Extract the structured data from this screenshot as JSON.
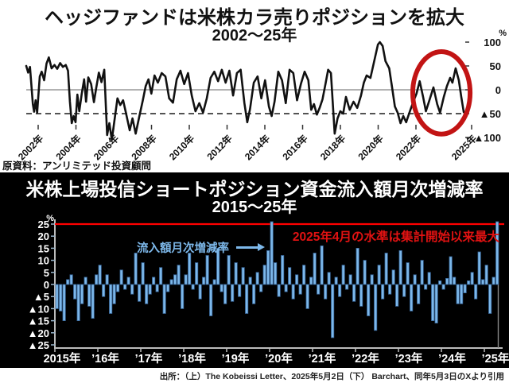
{
  "top": {
    "title": "ヘッジファンドは米株カラ売りポジションを拡大",
    "subtitle": "2002〜25年",
    "source": "原資料：アンリミテッド投資顧問",
    "unit": "%"
  },
  "bottom": {
    "title": "米株上場投信ショートポジション資金流入額月次増減率",
    "subtitle": "2015〜25年",
    "unit": "%",
    "series_label": "流入額月次増減率",
    "annotation": "2025年4月の水準は集計開始以来最大"
  },
  "caption": "出所：（上）The Kobeissi Letter、2025年5月2日（下） Barchart、同年5月3日のXより引用",
  "colors": {
    "line": "#111111",
    "circle": "#c21414",
    "bar_fill": "#7db8ea",
    "bar_stroke": "#39689c",
    "record_line": "#ff0000",
    "annotation_red": "#e11212",
    "axis_white": "#bbbbbb",
    "bottom_bg": "#000000"
  },
  "chart_data": [
    {
      "type": "line",
      "title": "ヘッジファンドは米株カラ売りポジションを拡大 2002〜25年",
      "y_unit": "%",
      "ylim": [
        -110,
        110
      ],
      "y_tick_values": [
        100,
        50,
        0,
        -50,
        -100
      ],
      "y_tick_labels": [
        "100",
        "50",
        "0",
        "▲50",
        "▲100"
      ],
      "x_tick_labels": [
        "2002年",
        "2004年",
        "2006年",
        "2008年",
        "2010年",
        "2012年",
        "2014年",
        "2016年",
        "2018年",
        "2020年",
        "2022年",
        "2025年"
      ],
      "zero_line": 0,
      "dashed_line_value": -50,
      "highlight": {
        "shape": "ellipse",
        "x_from": 2022.55,
        "x_to": 2025.6,
        "y_from": -93,
        "y_to": 80
      },
      "points": [
        [
          2002.0,
          50
        ],
        [
          2002.1,
          36
        ],
        [
          2002.2,
          48
        ],
        [
          2002.35,
          -30
        ],
        [
          2002.42,
          -46
        ],
        [
          2002.5,
          -22
        ],
        [
          2002.58,
          -48
        ],
        [
          2002.72,
          28
        ],
        [
          2002.82,
          38
        ],
        [
          2002.95,
          20
        ],
        [
          2003.08,
          55
        ],
        [
          2003.2,
          68
        ],
        [
          2003.35,
          45
        ],
        [
          2003.5,
          52
        ],
        [
          2003.65,
          44
        ],
        [
          2003.8,
          56
        ],
        [
          2003.95,
          48
        ],
        [
          2004.1,
          52
        ],
        [
          2004.22,
          40
        ],
        [
          2004.32,
          -25
        ],
        [
          2004.42,
          -70
        ],
        [
          2004.52,
          -55
        ],
        [
          2004.62,
          -68
        ],
        [
          2004.72,
          -10
        ],
        [
          2004.82,
          -45
        ],
        [
          2004.95,
          -8
        ],
        [
          2005.08,
          22
        ],
        [
          2005.18,
          -25
        ],
        [
          2005.3,
          26
        ],
        [
          2005.45,
          12
        ],
        [
          2005.6,
          -26
        ],
        [
          2005.72,
          4
        ],
        [
          2005.86,
          36
        ],
        [
          2006.0,
          16
        ],
        [
          2006.15,
          42
        ],
        [
          2006.3,
          -95
        ],
        [
          2006.42,
          -70
        ],
        [
          2006.55,
          -105
        ],
        [
          2006.7,
          -62
        ],
        [
          2006.85,
          -18
        ],
        [
          2007.0,
          -32
        ],
        [
          2007.15,
          -22
        ],
        [
          2007.3,
          -48
        ],
        [
          2007.5,
          -85
        ],
        [
          2007.65,
          -60
        ],
        [
          2007.82,
          -92
        ],
        [
          2008.0,
          -58
        ],
        [
          2008.2,
          -22
        ],
        [
          2008.35,
          8
        ],
        [
          2008.5,
          22
        ],
        [
          2008.65,
          -8
        ],
        [
          2008.82,
          30
        ],
        [
          2009.0,
          15
        ],
        [
          2009.2,
          35
        ],
        [
          2009.4,
          28
        ],
        [
          2009.6,
          -18
        ],
        [
          2009.8,
          -27
        ],
        [
          2010.0,
          22
        ],
        [
          2010.2,
          40
        ],
        [
          2010.4,
          12
        ],
        [
          2010.6,
          35
        ],
        [
          2010.8,
          -12
        ],
        [
          2011.0,
          -45
        ],
        [
          2011.2,
          -28
        ],
        [
          2011.4,
          -48
        ],
        [
          2011.6,
          -18
        ],
        [
          2011.8,
          25
        ],
        [
          2012.0,
          38
        ],
        [
          2012.2,
          18
        ],
        [
          2012.4,
          42
        ],
        [
          2012.6,
          15
        ],
        [
          2012.8,
          40
        ],
        [
          2013.0,
          -12
        ],
        [
          2013.2,
          35
        ],
        [
          2013.4,
          42
        ],
        [
          2013.6,
          -28
        ],
        [
          2013.75,
          -68
        ],
        [
          2013.9,
          -40
        ],
        [
          2014.1,
          15
        ],
        [
          2014.3,
          28
        ],
        [
          2014.5,
          -18
        ],
        [
          2014.7,
          20
        ],
        [
          2014.9,
          -35
        ],
        [
          2015.05,
          -55
        ],
        [
          2015.2,
          -25
        ],
        [
          2015.4,
          38
        ],
        [
          2015.6,
          20
        ],
        [
          2015.8,
          -28
        ],
        [
          2016.0,
          42
        ],
        [
          2016.2,
          35
        ],
        [
          2016.4,
          -22
        ],
        [
          2016.6,
          12
        ],
        [
          2016.8,
          38
        ],
        [
          2017.0,
          20
        ],
        [
          2017.15,
          -42
        ],
        [
          2017.3,
          -30
        ],
        [
          2017.45,
          -52
        ],
        [
          2017.6,
          -38
        ],
        [
          2017.75,
          -20
        ],
        [
          2017.9,
          10
        ],
        [
          2018.05,
          42
        ],
        [
          2018.2,
          35
        ],
        [
          2018.4,
          -92
        ],
        [
          2018.55,
          -60
        ],
        [
          2018.7,
          -45
        ],
        [
          2018.85,
          -50
        ],
        [
          2019.0,
          -15
        ],
        [
          2019.2,
          -42
        ],
        [
          2019.4,
          -25
        ],
        [
          2019.6,
          -38
        ],
        [
          2019.8,
          -12
        ],
        [
          2019.95,
          15
        ],
        [
          2020.1,
          30
        ],
        [
          2020.3,
          25
        ],
        [
          2020.5,
          60
        ],
        [
          2020.7,
          95
        ],
        [
          2020.8,
          100
        ],
        [
          2020.95,
          92
        ],
        [
          2021.1,
          60
        ],
        [
          2021.3,
          45
        ],
        [
          2021.45,
          5
        ],
        [
          2021.6,
          -35
        ],
        [
          2021.75,
          -48
        ],
        [
          2021.9,
          -70
        ],
        [
          2022.05,
          -55
        ],
        [
          2022.2,
          -68
        ],
        [
          2022.4,
          -45
        ],
        [
          2022.58,
          -25
        ],
        [
          2022.75,
          -8
        ],
        [
          2022.92,
          18
        ],
        [
          2023.1,
          -15
        ],
        [
          2023.25,
          -45
        ],
        [
          2023.45,
          -20
        ],
        [
          2023.65,
          5
        ],
        [
          2023.85,
          -30
        ],
        [
          2024.0,
          -48
        ],
        [
          2024.2,
          -15
        ],
        [
          2024.37,
          8
        ],
        [
          2024.54,
          25
        ],
        [
          2024.66,
          15
        ],
        [
          2024.83,
          45
        ],
        [
          2025.0,
          20
        ],
        [
          2025.13,
          -15
        ],
        [
          2025.26,
          -47
        ]
      ]
    },
    {
      "type": "bar",
      "title": "米株上場投信ショートポジション資金流入額月次増減率 2015〜25年",
      "y_unit": "%",
      "ylim": [
        -25,
        25
      ],
      "y_tick_values": [
        25,
        20,
        15,
        10,
        5,
        0,
        -5,
        -10,
        -15,
        -20,
        -25
      ],
      "x_tick_labels": [
        "2015年",
        "’16年",
        "’17年",
        "’18年",
        "’19年",
        "’20年",
        "’21年",
        "’22年",
        "’23年",
        "’24年",
        "’25年"
      ],
      "x_start": "2015-01",
      "x_end": "2025-04",
      "frequency": "monthly",
      "record_line_value": 25,
      "values": [
        -10,
        -11,
        -15,
        2,
        4,
        -6,
        -15,
        -8,
        3,
        -9,
        -14,
        4,
        8,
        -5,
        4,
        -12,
        -8,
        -3,
        6,
        -2,
        3,
        -4,
        13,
        -7,
        9,
        -8,
        -4,
        3,
        -3,
        7,
        -12,
        -3,
        2,
        4,
        8,
        -10,
        4,
        13,
        -2,
        9,
        -6,
        3,
        12,
        -13,
        2,
        15,
        -3,
        -8,
        12,
        -7,
        9,
        -5,
        7,
        -12,
        3,
        -8,
        5,
        -3,
        8,
        14,
        26,
        9,
        -5,
        12,
        -3,
        7,
        -6,
        4,
        -4,
        8,
        -10,
        3,
        13,
        -4,
        16,
        -6,
        5,
        -22,
        3,
        -5,
        8,
        -2,
        4,
        -7,
        15,
        -9,
        10,
        -13,
        4,
        -19,
        8,
        -6,
        13,
        -4,
        6,
        -9,
        14,
        -5,
        9,
        -11,
        4,
        -8,
        10,
        -2,
        5,
        -15,
        -16,
        1.5,
        -2,
        2.5,
        11.5,
        3,
        -8,
        -8,
        -3.5,
        1.5,
        5,
        -6,
        13.5,
        2,
        8,
        -12,
        3,
        26
      ]
    }
  ]
}
